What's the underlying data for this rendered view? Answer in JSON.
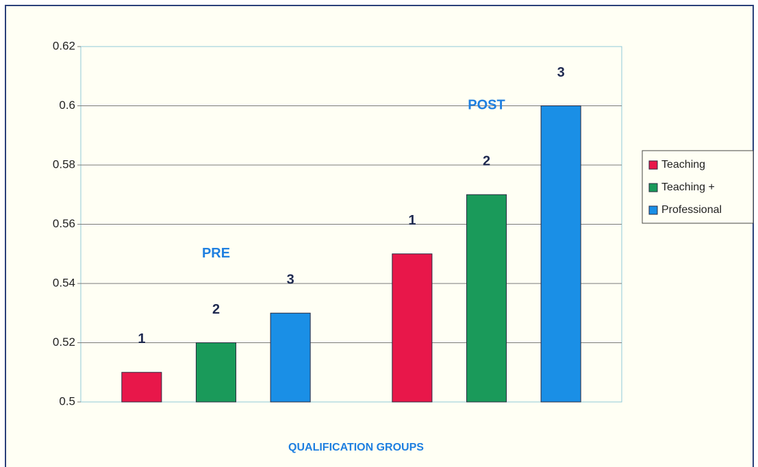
{
  "chart_data": {
    "type": "bar",
    "xlabel": "QUALIFICATION GROUPS",
    "categories": [
      "PRE",
      "POST"
    ],
    "series": [
      {
        "name": "Teaching",
        "color": "#e8174a",
        "values": [
          0.51,
          0.55
        ]
      },
      {
        "name": "Teaching +",
        "color": "#1a9a5a",
        "values": [
          0.52,
          0.57
        ]
      },
      {
        "name": "Professional",
        "color": "#1a8fe6",
        "values": [
          0.53,
          0.6
        ]
      }
    ],
    "bar_labels": [
      "1",
      "2",
      "3"
    ],
    "ylim": [
      0.5,
      0.62
    ],
    "yticks": [
      0.5,
      0.52,
      0.54,
      0.56,
      0.58,
      0.6,
      0.62
    ],
    "grid": true,
    "legend": "right"
  }
}
